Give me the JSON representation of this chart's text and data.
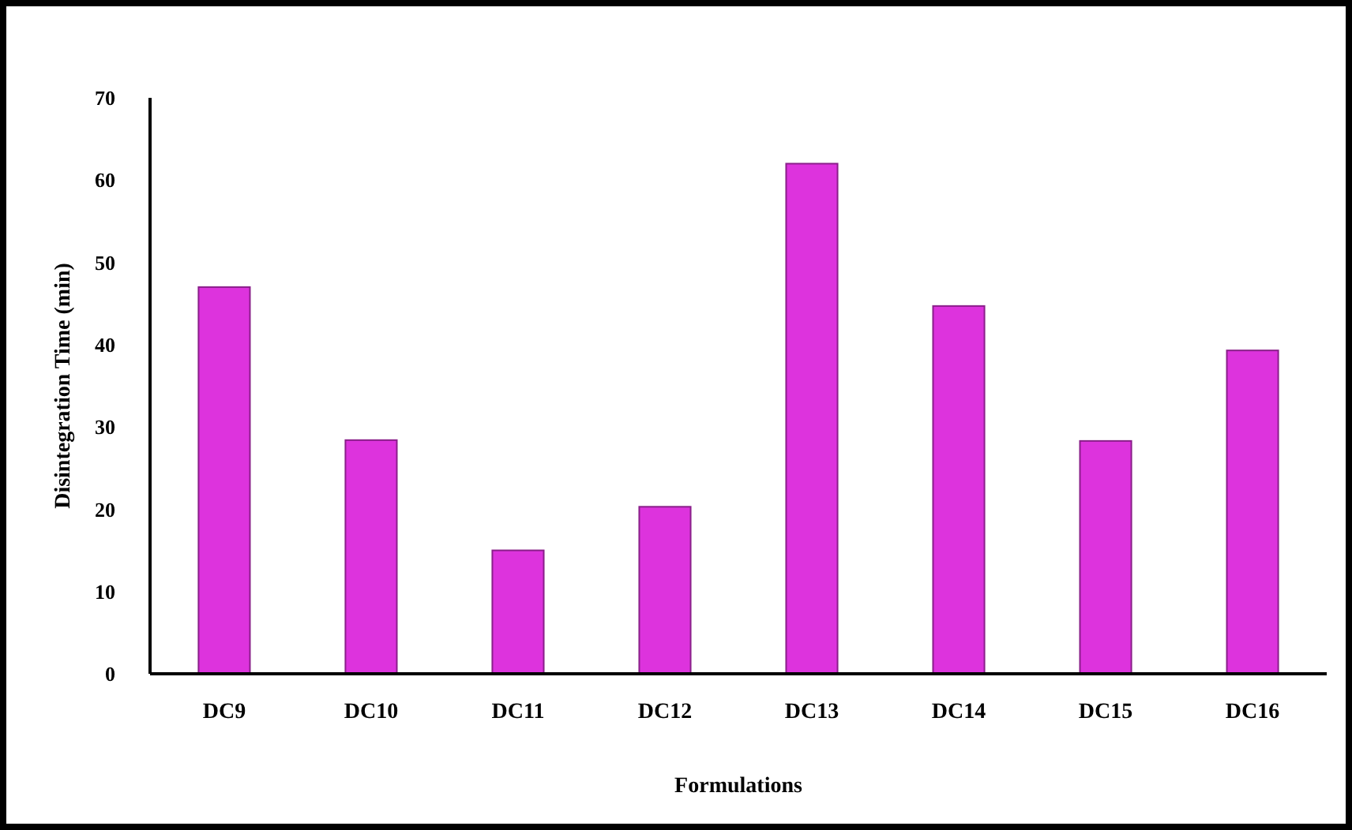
{
  "chart_data": {
    "type": "bar",
    "xlabel": "Formulations",
    "ylabel": "Disintegration Time (min)",
    "categories": [
      "DC9",
      "DC10",
      "DC11",
      "DC12",
      "DC13",
      "DC14",
      "DC15",
      "DC16"
    ],
    "values": [
      47,
      28.4,
      15,
      20.3,
      62,
      44.7,
      28.3,
      39.3
    ],
    "color": "#dd33dd",
    "ylim": [
      0,
      70
    ],
    "yticks": [
      0,
      10,
      20,
      30,
      40,
      50,
      60,
      70
    ],
    "grid": false
  }
}
